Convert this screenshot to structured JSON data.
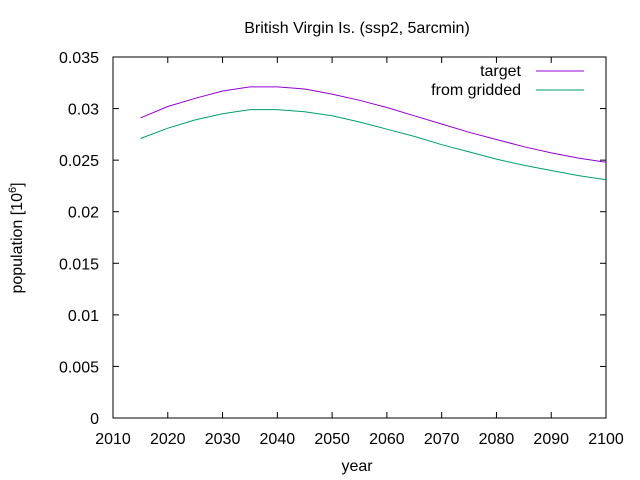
{
  "chart_data": {
    "type": "line",
    "title": "British Virgin Is. (ssp2, 5arcmin)",
    "xlabel": "year",
    "ylabel_main": "population [10",
    "ylabel_sup": "6",
    "ylabel_close": "]",
    "xlim": [
      2010,
      2100
    ],
    "ylim": [
      0,
      0.035
    ],
    "xticks": [
      "2010",
      "2020",
      "2030",
      "2040",
      "2050",
      "2060",
      "2070",
      "2080",
      "2090",
      "2100"
    ],
    "yticks": [
      "0",
      "0.005",
      "0.01",
      "0.015",
      "0.02",
      "0.025",
      "0.03",
      "0.035"
    ],
    "grid": false,
    "legend_position": "top-right",
    "series": [
      {
        "name": "target",
        "color": "#9400d3",
        "x": [
          2015,
          2020,
          2025,
          2030,
          2035,
          2040,
          2045,
          2050,
          2055,
          2060,
          2065,
          2070,
          2075,
          2080,
          2085,
          2090,
          2095,
          2100
        ],
        "y": [
          0.0291,
          0.0302,
          0.031,
          0.0317,
          0.0321,
          0.0321,
          0.0319,
          0.0314,
          0.0308,
          0.0301,
          0.0293,
          0.0285,
          0.0277,
          0.027,
          0.0263,
          0.0257,
          0.0252,
          0.0248
        ]
      },
      {
        "name": "from gridded",
        "color": "#009e73",
        "x": [
          2015,
          2020,
          2025,
          2030,
          2035,
          2040,
          2045,
          2050,
          2055,
          2060,
          2065,
          2070,
          2075,
          2080,
          2085,
          2090,
          2095,
          2100
        ],
        "y": [
          0.0271,
          0.0281,
          0.0289,
          0.0295,
          0.0299,
          0.0299,
          0.0297,
          0.0293,
          0.0287,
          0.028,
          0.0273,
          0.0265,
          0.0258,
          0.0251,
          0.0245,
          0.024,
          0.0235,
          0.0231
        ]
      }
    ]
  }
}
